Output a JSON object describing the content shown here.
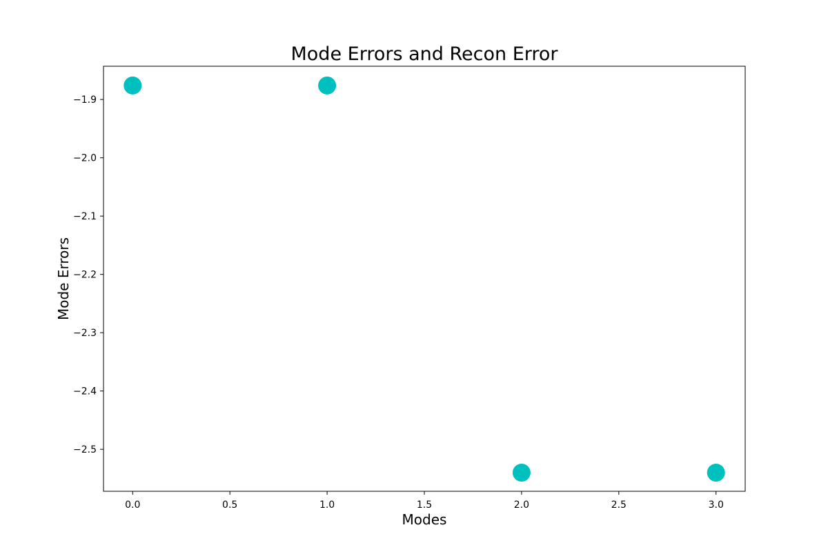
{
  "chart_data": {
    "type": "scatter",
    "title": "Mode Errors and Recon Error",
    "xlabel": "Modes",
    "ylabel": "Mode Errors",
    "x": [
      0,
      1,
      2,
      3
    ],
    "y": [
      -1.876,
      -1.876,
      -2.54,
      -2.54
    ],
    "xlim": [
      -0.15,
      3.15
    ],
    "ylim": [
      -2.572,
      -1.843
    ],
    "xticks": [
      0.0,
      0.5,
      1.0,
      1.5,
      2.0,
      2.5,
      3.0
    ],
    "xtick_labels": [
      "0.0",
      "0.5",
      "1.0",
      "1.5",
      "2.0",
      "2.5",
      "3.0"
    ],
    "yticks": [
      -1.9,
      -2.0,
      -2.1,
      -2.2,
      -2.3,
      -2.4,
      -2.5
    ],
    "ytick_labels": [
      "−1.9",
      "−2.0",
      "−2.1",
      "−2.2",
      "−2.3",
      "−2.4",
      "−2.5"
    ],
    "marker_color": "#00bfbf",
    "grid": false,
    "legend": false
  }
}
